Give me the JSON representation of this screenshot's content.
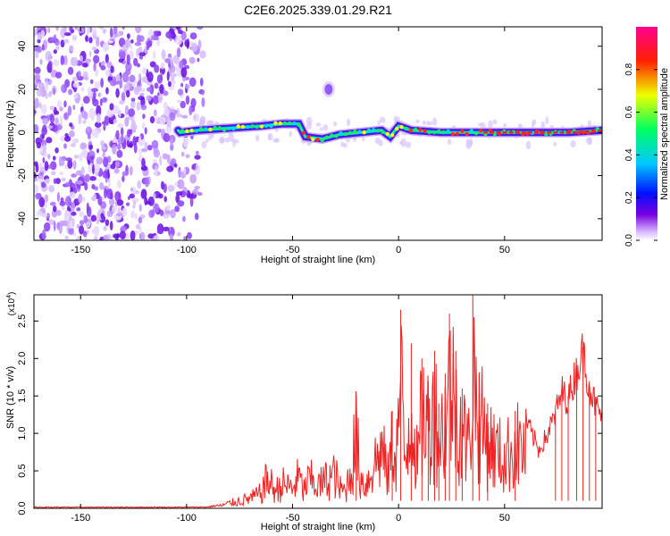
{
  "figure_title": "C2E6.2025.339.01.29.R21",
  "chart_data": [
    {
      "type": "heatmap",
      "title": "C2E6.2025.339.01.29.R21",
      "xlabel": "Height of straight line (km)",
      "ylabel": "Frequency (Hz)",
      "xlim": [
        -172,
        96
      ],
      "ylim": [
        -50,
        49
      ],
      "x_ticks": [
        -150,
        -100,
        -50,
        0,
        50
      ],
      "y_ticks": [
        40,
        20,
        0,
        -20,
        -40
      ],
      "x_tick_labels": [
        "-150",
        "-100",
        "-50",
        "0",
        "50"
      ],
      "y_tick_labels": [
        "40",
        "20",
        "0",
        "-20",
        "-40"
      ],
      "colorbar": {
        "label": "Normalized spectral amplitude",
        "range": [
          0,
          1
        ],
        "ticks": [
          0.0,
          0.2,
          0.4,
          0.6,
          0.8
        ],
        "tick_labels": [
          "0.0",
          "0.2",
          "0.4",
          "0.6",
          "0.8"
        ],
        "colormap": "rainbow (white → violet → blue → cyan → green → yellow → red → magenta)"
      },
      "features": {
        "noise_region_x": [
          -172,
          -92
        ],
        "signal_band_center": [
          [
            -103,
            0
          ],
          [
            -95,
            1
          ],
          [
            -80,
            2
          ],
          [
            -65,
            3
          ],
          [
            -55,
            4
          ],
          [
            -47,
            4
          ],
          [
            -44,
            -2
          ],
          [
            -36,
            -3
          ],
          [
            -28,
            -1
          ],
          [
            -18,
            0
          ],
          [
            -8,
            1
          ],
          [
            -4,
            -2
          ],
          [
            0,
            3
          ],
          [
            6,
            1
          ],
          [
            20,
            0
          ],
          [
            40,
            0
          ],
          [
            60,
            0
          ],
          [
            80,
            0
          ],
          [
            96,
            1
          ]
        ],
        "isolated_blob": {
          "x": -33,
          "y": 20
        }
      }
    },
    {
      "type": "line",
      "xlabel": "Height of straight line (km)",
      "ylabel": "SNR (10 * v/v)",
      "y_scale_label": "(x10",
      "y_scale_exp": "4",
      "xlim": [
        -172,
        96
      ],
      "ylim": [
        0,
        28500
      ],
      "x_ticks": [
        -150,
        -100,
        -50,
        0,
        50
      ],
      "x_tick_labels": [
        "-150",
        "-100",
        "-50",
        "0",
        "50"
      ],
      "y_ticks": [
        0.0,
        0.5,
        1.0,
        1.5,
        2.0,
        2.5
      ],
      "y_tick_labels": [
        "0.0",
        "0.5",
        "1.0",
        "1.5",
        "2.0",
        "2.5"
      ],
      "series": [
        {
          "name": "SNR",
          "color": "#ee2222",
          "points": [
            [
              -172,
              150
            ],
            [
              -150,
              150
            ],
            [
              -120,
              150
            ],
            [
              -100,
              150
            ],
            [
              -90,
              180
            ],
            [
              -85,
              400
            ],
            [
              -80,
              1000
            ],
            [
              -75,
              1500
            ],
            [
              -70,
              2000
            ],
            [
              -65,
              3000
            ],
            [
              -62,
              6000
            ],
            [
              -58,
              3500
            ],
            [
              -55,
              5000
            ],
            [
              -50,
              4000
            ],
            [
              -47,
              6500
            ],
            [
              -45,
              3500
            ],
            [
              -42,
              6000
            ],
            [
              -38,
              4500
            ],
            [
              -35,
              5500
            ],
            [
              -30,
              7000
            ],
            [
              -28,
              4000
            ],
            [
              -25,
              3500
            ],
            [
              -22,
              9000
            ],
            [
              -20,
              15000
            ],
            [
              -18,
              6000
            ],
            [
              -15,
              5000
            ],
            [
              -12,
              9000
            ],
            [
              -10,
              10000
            ],
            [
              -8,
              12000
            ],
            [
              -5,
              6500
            ],
            [
              -3,
              13000
            ],
            [
              -1,
              11000
            ],
            [
              1,
              26500
            ],
            [
              3,
              9000
            ],
            [
              6,
              22000
            ],
            [
              9,
              8000
            ],
            [
              11,
              20000
            ],
            [
              14,
              17000
            ],
            [
              17,
              21000
            ],
            [
              19,
              14000
            ],
            [
              22,
              18000
            ],
            [
              24,
              26000
            ],
            [
              27,
              21000
            ],
            [
              30,
              16000
            ],
            [
              33,
              12000
            ],
            [
              35,
              28500
            ],
            [
              38,
              18000
            ],
            [
              42,
              14000
            ],
            [
              45,
              12000
            ],
            [
              50,
              10000
            ],
            [
              55,
              13000
            ],
            [
              60,
              12000
            ],
            [
              64,
              9500
            ],
            [
              66,
              8000
            ],
            [
              70,
              10000
            ],
            [
              74,
              13000
            ],
            [
              77,
              16000
            ],
            [
              80,
              15000
            ],
            [
              84,
              19000
            ],
            [
              87,
              21500
            ],
            [
              90,
              17000
            ],
            [
              93,
              14000
            ],
            [
              96,
              12500
            ]
          ]
        }
      ]
    }
  ]
}
